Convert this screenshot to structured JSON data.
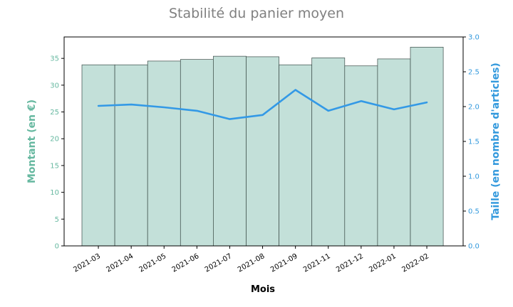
{
  "chart_data": {
    "type": "bar+line",
    "title": "Stabilité du panier moyen",
    "xlabel": "Mois",
    "ylabel_left": "Montant (en €)",
    "ylabel_right": "Taille (en nombre d'articles)",
    "categories": [
      "2021-03",
      "2021-04",
      "2021-05",
      "2021-06",
      "2021-07",
      "2021-08",
      "2021-09",
      "2021-11",
      "2021-12",
      "2022-01",
      "2022-02"
    ],
    "left_axis": {
      "ylim": [
        0,
        39
      ],
      "ticks": [
        0,
        5,
        10,
        15,
        20,
        25,
        30,
        35
      ]
    },
    "right_axis": {
      "ylim": [
        0,
        3.0
      ],
      "ticks": [
        0.0,
        0.5,
        1.0,
        1.5,
        2.0,
        2.5,
        3.0
      ]
    },
    "series": [
      {
        "type": "bar",
        "axis": "left",
        "values": [
          33.8,
          33.8,
          34.5,
          34.8,
          35.4,
          35.3,
          33.8,
          35.1,
          33.6,
          34.9,
          37.1
        ],
        "color": "#c3e0d9"
      },
      {
        "type": "line",
        "axis": "right",
        "values": [
          2.01,
          2.03,
          1.99,
          1.94,
          1.82,
          1.88,
          2.24,
          1.94,
          2.08,
          1.96,
          2.06
        ],
        "color": "#3399e6"
      }
    ],
    "grid": false
  },
  "colors": {
    "bar_fill": "#c3e0d9",
    "bar_edge": "#3a4a46",
    "line": "#3399e6",
    "left_accent": "#66b8a0",
    "right_accent": "#3399dd"
  }
}
